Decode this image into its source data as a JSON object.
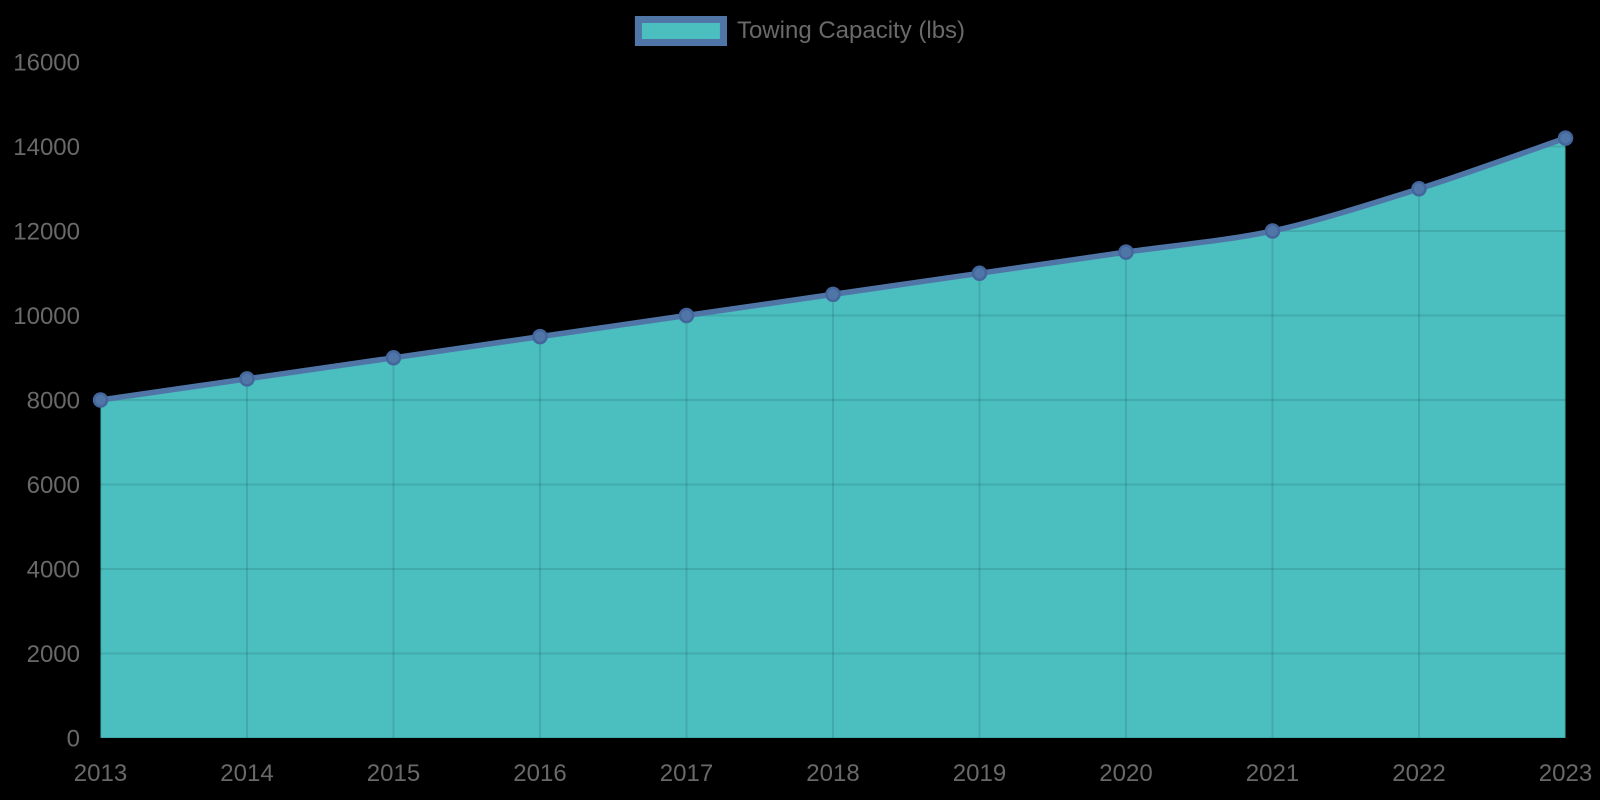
{
  "legend": {
    "label": "Towing Capacity (lbs)"
  },
  "colors": {
    "background": "#000000",
    "area_fill": "#4BBEBF",
    "line": "#5076A8",
    "marker_fill": "#5076A8",
    "marker_stroke": "#44669C",
    "grid_line": "rgba(0,0,0,0.10)",
    "axis_text": "#696969"
  },
  "chart_data": {
    "type": "area",
    "title": "",
    "xlabel": "",
    "ylabel": "",
    "categories": [
      "2013",
      "2014",
      "2015",
      "2016",
      "2017",
      "2018",
      "2019",
      "2020",
      "2021",
      "2022",
      "2023"
    ],
    "series": [
      {
        "name": "Towing Capacity (lbs)",
        "values": [
          8000,
          8500,
          9000,
          9500,
          10000,
          10500,
          11000,
          11500,
          12000,
          13000,
          14200
        ]
      }
    ],
    "ylim": [
      0,
      16000
    ],
    "y_tick_step": 2000,
    "y_tick_labels": [
      "0",
      "2000",
      "4000",
      "6000",
      "8000",
      "10000",
      "12000",
      "14000",
      "16000"
    ],
    "grid": true,
    "legend_position": "top-center",
    "line_smoothing": true
  }
}
